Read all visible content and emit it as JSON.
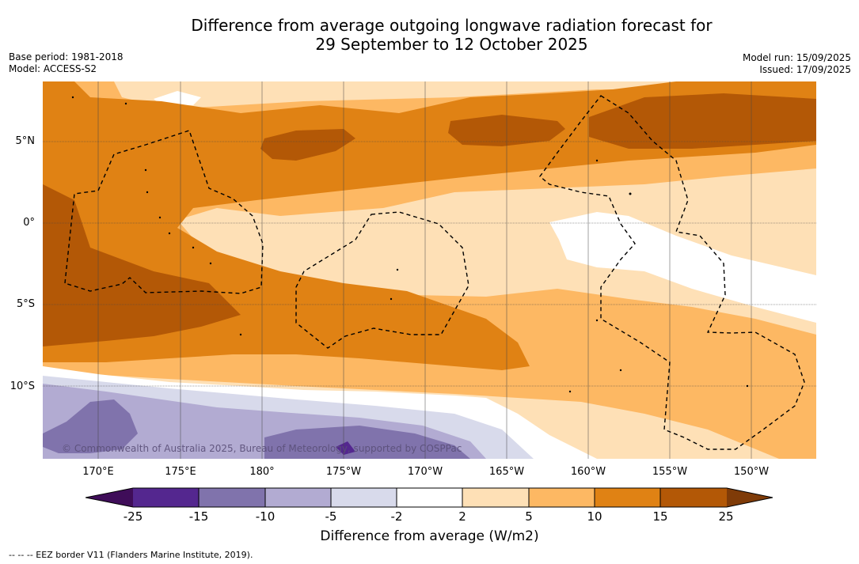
{
  "title": {
    "line1": "Difference from average outgoing longwave radiation forecast for",
    "line2": "29 September to 12 October 2025"
  },
  "meta": {
    "base_period": "Base period: 1981-2018",
    "model": "Model: ACCESS-S2",
    "model_run": "Model run: 15/09/2025",
    "issued": "Issued: 17/09/2025"
  },
  "axes": {
    "lat_labels": [
      "5°N",
      "0°",
      "5°S",
      "10°S"
    ],
    "lon_labels": [
      "170°E",
      "175°E",
      "180°",
      "175°W",
      "170°W",
      "165°W",
      "160°W",
      "155°W",
      "150°W"
    ]
  },
  "legend": {
    "ticks": [
      "-25",
      "-15",
      "-10",
      "-5",
      "-2",
      "2",
      "5",
      "10",
      "15",
      "25"
    ],
    "title": "Difference from average (W/m2)",
    "colors": {
      "lt_neg25": "#3f0d59",
      "neg25_neg15": "#54278f",
      "neg15_neg10": "#8073ac",
      "neg10_neg5": "#b2abd2",
      "neg5_neg2": "#d8daeb",
      "neg2_2": "#ffffff",
      "2_5": "#fee0b6",
      "5_10": "#fdb863",
      "10_15": "#e08214",
      "15_25": "#b35806",
      "gt25": "#7f3b08"
    }
  },
  "map": {
    "copyright": "© Commonwealth of Australia 2025, Bureau of Meteorology, supported by COSPPac"
  },
  "footer": {
    "eez_note": "--  --  -- EEZ border V11 (Flanders Marine Institute, 2019)."
  }
}
